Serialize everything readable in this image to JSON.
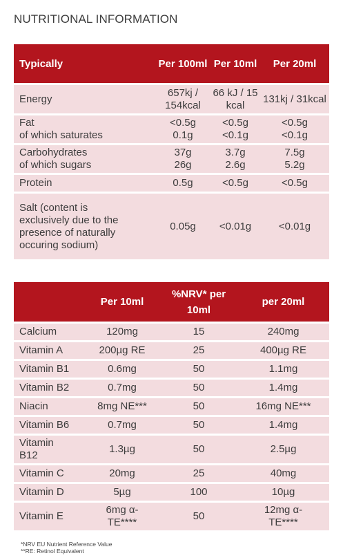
{
  "heading": "NUTRITIONAL INFORMATION",
  "table1": {
    "headers": [
      "Typically",
      "Per 100ml",
      "Per 10ml",
      "Per 20ml"
    ],
    "rows": [
      {
        "label": "Energy",
        "v100": "657kj / 154kcal",
        "v10": "66 kJ / 15 kcal",
        "v20": "131kj / 31kcal"
      },
      {
        "label": "Fat\nof which saturates",
        "v100": "<0.5g\n0.1g",
        "v10": "<0.5g\n<0.1g",
        "v20": "<0.5g\n<0.1g"
      },
      {
        "label": "Carbohydrates\nof which sugars",
        "v100": "37g\n26g",
        "v10": "3.7g\n2.6g",
        "v20": "7.5g\n5.2g"
      },
      {
        "label": "Protein",
        "v100": "0.5g",
        "v10": "<0.5g",
        "v20": "<0.5g"
      },
      {
        "label": "Salt\n(content is exclusively due to the presence of naturally occuring sodium)",
        "v100": "0.05g",
        "v10": "<0.01g",
        "v20": "<0.01g"
      }
    ]
  },
  "table2": {
    "headers": [
      "",
      "Per 10ml",
      "%NRV* per 10ml",
      "per 20ml"
    ],
    "rows": [
      {
        "label": "Calcium",
        "v10": "120mg",
        "nrv": "15",
        "v20": "240mg"
      },
      {
        "label": "Vitamin A",
        "v10": "200µg RE",
        "nrv": "25",
        "v20": "400µg RE"
      },
      {
        "label": "Vitamin B1",
        "v10": "0.6mg",
        "nrv": "50",
        "v20": "1.1mg"
      },
      {
        "label": "Vitamin B2",
        "v10": "0.7mg",
        "nrv": "50",
        "v20": "1.4mg"
      },
      {
        "label": "Niacin",
        "v10": "8mg NE***",
        "nrv": "50",
        "v20": "16mg NE***"
      },
      {
        "label": "Vitamin B6",
        "v10": "0.7mg",
        "nrv": "50",
        "v20": "1.4mg"
      },
      {
        "label": "Vitamin B12",
        "v10": "1.3µg",
        "nrv": "50",
        "v20": "2.5µg"
      },
      {
        "label": "Vitamin C",
        "v10": "20mg",
        "nrv": "25",
        "v20": "40mg"
      },
      {
        "label": "Vitamin D",
        "v10": "5µg",
        "nrv": "100",
        "v20": "10µg"
      },
      {
        "label": "Vitamin E",
        "v10": "6mg α-TE****",
        "nrv": "50",
        "v20": "12mg α-TE****"
      }
    ]
  },
  "footnotes": [
    "*NRV EU Nutrient Reference Value",
    "**RE: Retinol Equivalent"
  ]
}
